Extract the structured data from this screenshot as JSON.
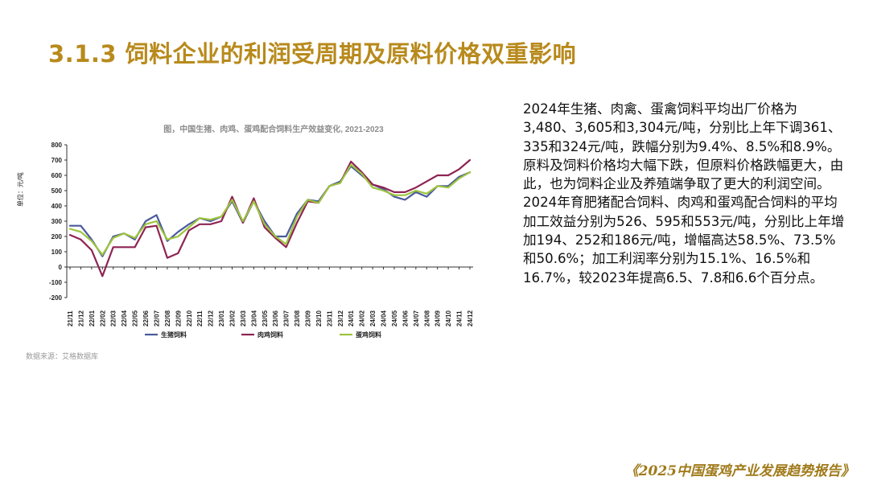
{
  "header": {
    "title": "3.1.3 饲料企业的利润受周期及原料价格双重影响"
  },
  "chart_data": {
    "type": "line",
    "title": "图，中国生猪、肉鸡、蛋鸡配合饲料生产效益变化, 2021-2023",
    "ylabel": "单位：元/吨",
    "source": "数据来源：艾格数据库",
    "ylim": [
      -200,
      800
    ],
    "yticks": [
      -200,
      -100,
      0,
      100,
      200,
      300,
      400,
      500,
      600,
      700,
      800
    ],
    "categories": [
      "21/11",
      "21/12",
      "22/01",
      "22/02",
      "22/03",
      "22/04",
      "22/05",
      "22/06",
      "22/07",
      "22/08",
      "22/09",
      "22/10",
      "22/11",
      "22/12",
      "23/01",
      "23/02",
      "23/03",
      "23/04",
      "23/05",
      "23/06",
      "23/07",
      "23/08",
      "23/09",
      "23/10",
      "23/11",
      "23/12",
      "24/01",
      "24/02",
      "24/03",
      "24/04",
      "24/05",
      "24/06",
      "24/07",
      "24/08",
      "24/09",
      "24/10",
      "24/11",
      "24/12"
    ],
    "legend_position": "bottom",
    "series": [
      {
        "name": "生猪饲料",
        "color": "#4a5a9c",
        "values": [
          270,
          270,
          180,
          70,
          200,
          220,
          180,
          300,
          340,
          170,
          230,
          280,
          320,
          300,
          330,
          430,
          290,
          430,
          300,
          200,
          200,
          350,
          440,
          430,
          530,
          560,
          660,
          600,
          540,
          510,
          460,
          440,
          490,
          460,
          530,
          530,
          590,
          620
        ]
      },
      {
        "name": "肉鸡饲料",
        "color": "#8e2452",
        "values": [
          210,
          180,
          110,
          -60,
          130,
          130,
          130,
          260,
          270,
          60,
          90,
          240,
          280,
          280,
          300,
          460,
          290,
          450,
          260,
          190,
          130,
          290,
          430,
          420,
          530,
          550,
          690,
          620,
          540,
          520,
          490,
          490,
          520,
          560,
          600,
          600,
          640,
          700
        ]
      },
      {
        "name": "蛋鸡饲料",
        "color": "#9dc43c",
        "values": [
          250,
          230,
          170,
          80,
          190,
          220,
          190,
          280,
          300,
          180,
          200,
          260,
          320,
          310,
          330,
          440,
          300,
          430,
          280,
          200,
          150,
          330,
          440,
          420,
          530,
          550,
          670,
          610,
          520,
          500,
          470,
          470,
          500,
          480,
          530,
          520,
          580,
          620
        ]
      }
    ]
  },
  "body": {
    "p1": "2024年生猪、肉禽、蛋禽饲料平均出厂价格为3,480、3,605和3,304元/吨，分别比上年下调361、335和324元/吨，跌幅分别为9.4%、8.5%和8.9%。原料及饲料价格均大幅下跌，但原料价格跌幅更大，由此，也为饲料企业及养殖端争取了更大的利润空间。",
    "p2": "2024年育肥猪配合饲料、肉鸡和蛋鸡配合饲料的平均加工效益分别为526、595和553元/吨，分别比上年增加194、252和186元/吨，增幅高达58.5%、73.5%和50.6%；加工利润率分别为15.1%、16.5%和16.7%，较2023年提高6.5、7.8和6.6个百分点。"
  },
  "footer": {
    "report_title": "《2025中国蛋鸡产业发展趋势报告》"
  }
}
